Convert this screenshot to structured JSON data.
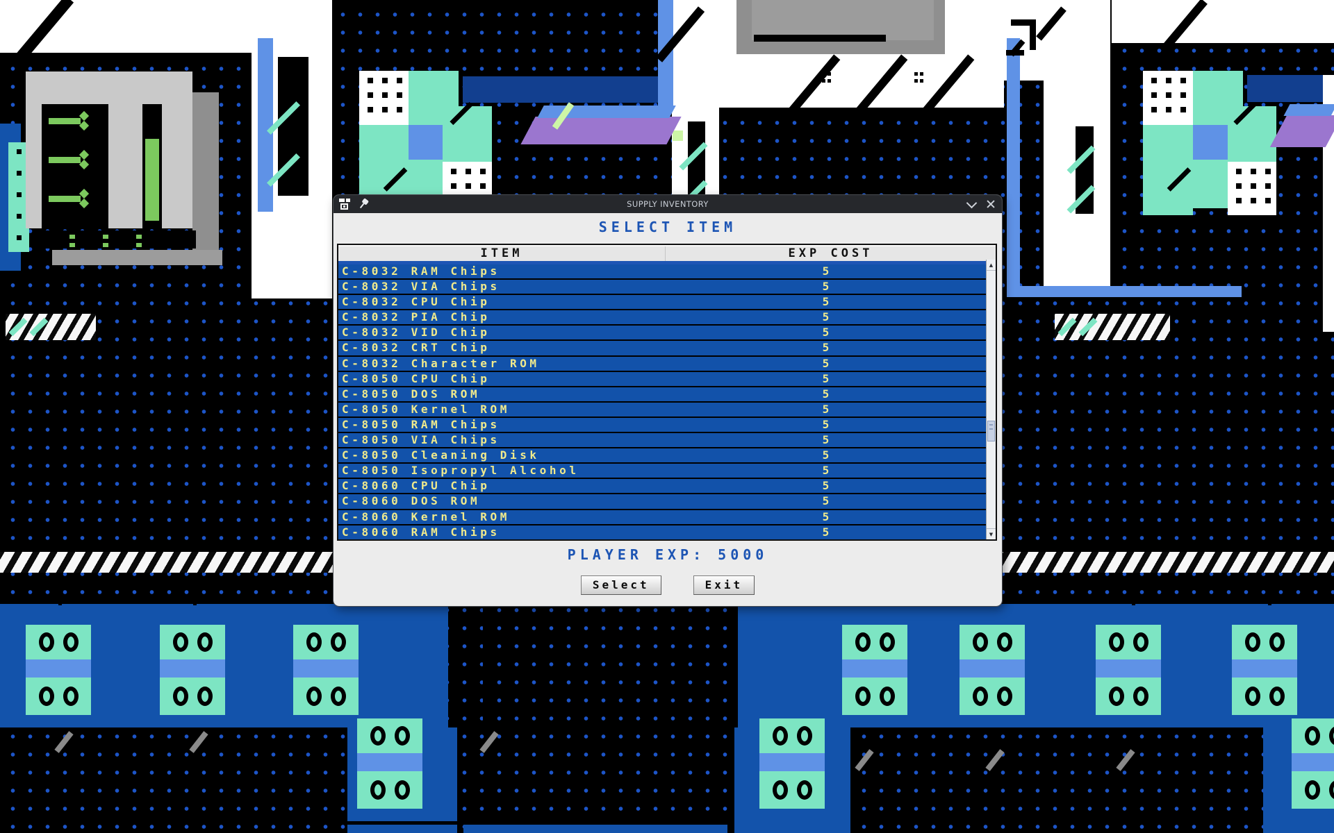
{
  "window": {
    "title": "SUPPLY INVENTORY",
    "controls": {
      "minimize": "chevron-down",
      "close": "x"
    }
  },
  "dialog": {
    "heading": "SELECT ITEM",
    "columns": {
      "item": "ITEM",
      "cost": "EXP COST"
    },
    "items": [
      {
        "name": "C-8032 RAM Chips",
        "cost": "5"
      },
      {
        "name": "C-8032 VIA Chips",
        "cost": "5"
      },
      {
        "name": "C-8032 CPU Chip",
        "cost": "5"
      },
      {
        "name": "C-8032 PIA Chip",
        "cost": "5"
      },
      {
        "name": "C-8032 VID Chip",
        "cost": "5"
      },
      {
        "name": "C-8032 CRT Chip",
        "cost": "5"
      },
      {
        "name": "C-8032 Character ROM",
        "cost": "5"
      },
      {
        "name": "C-8050 CPU Chip",
        "cost": "5"
      },
      {
        "name": "C-8050 DOS ROM",
        "cost": "5"
      },
      {
        "name": "C-8050 Kernel ROM",
        "cost": "5"
      },
      {
        "name": "C-8050 RAM Chips",
        "cost": "5"
      },
      {
        "name": "C-8050 VIA Chips",
        "cost": "5"
      },
      {
        "name": "C-8050 Cleaning Disk",
        "cost": "5"
      },
      {
        "name": "C-8050 Isopropyl Alcohol",
        "cost": "5"
      },
      {
        "name": "C-8060 CPU Chip",
        "cost": "5"
      },
      {
        "name": "C-8060 DOS ROM",
        "cost": "5"
      },
      {
        "name": "C-8060 Kernel ROM",
        "cost": "5"
      },
      {
        "name": "C-8060 RAM Chips",
        "cost": "5"
      }
    ],
    "player_exp": "PLAYER EXP:  5000",
    "buttons": {
      "select": "Select",
      "exit": "Exit"
    }
  },
  "colors": {
    "accent": "#1d55b4",
    "rowblue": "#1252aa",
    "itemyellow": "#f0ea8c",
    "teal": "#7de5c3",
    "cornflower": "#5f92e6",
    "navy": "#123f8f",
    "panelblue": "#1353ab",
    "purple": "#9b76cf",
    "green": "#7cc95e",
    "palegreen": "#cdf5a6",
    "dot": "#1d55c8"
  }
}
